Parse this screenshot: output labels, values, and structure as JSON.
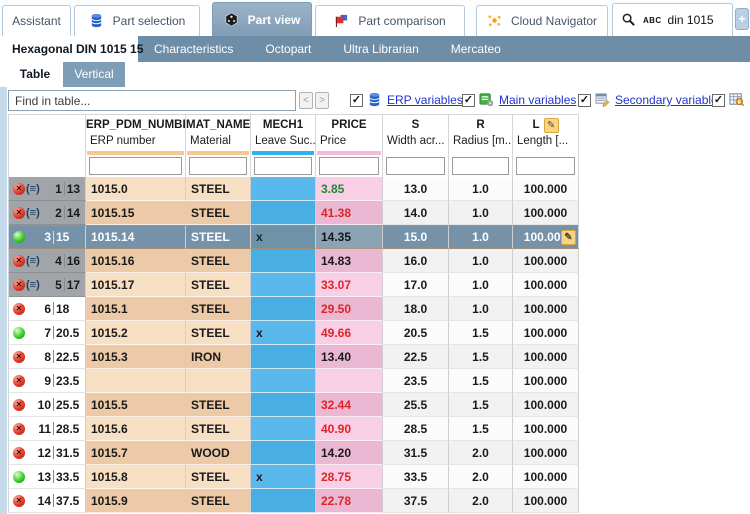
{
  "top_tabs": [
    {
      "label": "Assistant",
      "icon": null,
      "active": false
    },
    {
      "label": "Part selection",
      "icon": "database-icon",
      "active": false
    },
    {
      "label": "Part view",
      "icon": "cube-icon",
      "active": true
    },
    {
      "label": "Part comparison",
      "icon": "flag-icon",
      "active": false
    },
    {
      "label": "Cloud Navigator",
      "icon": "nodes-icon",
      "active": false
    }
  ],
  "search": {
    "abc_label": "ABC",
    "value": "din 1015",
    "icon": "magnifier-icon"
  },
  "new_tab_button": "+",
  "doc_tabs": [
    {
      "label": "Hexagonal DIN 1015 15",
      "active": true
    },
    {
      "label": "Characteristics",
      "active": false
    },
    {
      "label": "Octopart",
      "active": false
    },
    {
      "label": "Ultra Librarian",
      "active": false
    },
    {
      "label": "Mercateo",
      "active": false
    }
  ],
  "view_tabs": [
    {
      "label": "Table",
      "active": true
    },
    {
      "label": "Vertical",
      "active": false
    }
  ],
  "toolbar": {
    "find_placeholder": "Find in table...",
    "prev_label": "<",
    "next_label": ">",
    "toggles": [
      {
        "label": "ERP variables",
        "checked": true,
        "icon": "database-icon"
      },
      {
        "label": "Main variables",
        "checked": true,
        "icon": "main-variables-icon"
      },
      {
        "label": "Secondary variables",
        "checked": true,
        "icon": "secondary-variables-icon"
      },
      {
        "label": "",
        "checked": true,
        "icon": "table-preview-icon"
      }
    ]
  },
  "icons": {
    "eq": "(≡)",
    "pencil": "✎",
    "ball_x": "✕",
    "check": "✓"
  },
  "colors": {
    "link_blue": "#2233cc",
    "left_strip": "#c5dbec",
    "tan_light": "#f7dfc4",
    "tan_dark": "#eccaa7",
    "mech_blue_light": "#5ab9ec",
    "mech_blue_dark": "#49aee4",
    "price_pink_light": "#f8cfe6",
    "price_pink_dark": "#eab8d3",
    "selected_row": "#7592a8",
    "gray_row_header": "#a1a4a8",
    "price_red": "#e02424",
    "price_green": "#1e8a30",
    "header_bar_orange": "#f6c894",
    "header_bar_blue": "#2fb3ea",
    "header_bar_pink": "#f8bada"
  },
  "table": {
    "columns": [
      {
        "name": "ERP_PDM_NUMBER",
        "desc": "ERP number",
        "bar_color": "#f6c894",
        "header_pencil": false
      },
      {
        "name": "MAT_NAME",
        "desc": "Material",
        "bar_color": "#f6c894",
        "header_pencil": false
      },
      {
        "name": "MECH1",
        "desc": "Leave Suc...",
        "bar_color": "#2fb3ea",
        "header_pencil": false
      },
      {
        "name": "PRICE",
        "desc": "Price",
        "bar_color": "#f8bada",
        "header_pencil": false
      },
      {
        "name": "S",
        "desc": "Width acr...",
        "bar_color": "",
        "header_pencil": false
      },
      {
        "name": "R",
        "desc": "Radius [m...",
        "bar_color": "",
        "header_pencil": false
      },
      {
        "name": "L",
        "desc": "Length [...",
        "bar_color": "",
        "header_pencil": true
      }
    ],
    "rows": [
      {
        "n": 1,
        "key": "13",
        "status": "unavailable",
        "eq": true,
        "gray_header": true,
        "selected": false,
        "erp": "1015.0",
        "material": "STEEL",
        "mech1": "",
        "price": "3.85",
        "price_color": "green",
        "s": "13.0",
        "r": "1.0",
        "l": "100.000",
        "pencil": false
      },
      {
        "n": 2,
        "key": "14",
        "status": "unavailable",
        "eq": true,
        "gray_header": true,
        "selected": false,
        "erp": "1015.15",
        "material": "STEEL",
        "mech1": "",
        "price": "41.38",
        "price_color": "red",
        "s": "14.0",
        "r": "1.0",
        "l": "100.000",
        "pencil": false
      },
      {
        "n": 3,
        "key": "15",
        "status": "available",
        "eq": false,
        "gray_header": false,
        "selected": true,
        "erp": "1015.14",
        "material": "STEEL",
        "mech1": "x",
        "price": "14.35",
        "price_color": "black",
        "s": "15.0",
        "r": "1.0",
        "l": "100.000",
        "pencil": true
      },
      {
        "n": 4,
        "key": "16",
        "status": "unavailable",
        "eq": true,
        "gray_header": true,
        "selected": false,
        "erp": "1015.16",
        "material": "STEEL",
        "mech1": "",
        "price": "14.83",
        "price_color": "black",
        "s": "16.0",
        "r": "1.0",
        "l": "100.000",
        "pencil": false
      },
      {
        "n": 5,
        "key": "17",
        "status": "unavailable",
        "eq": true,
        "gray_header": true,
        "selected": false,
        "erp": "1015.17",
        "material": "STEEL",
        "mech1": "",
        "price": "33.07",
        "price_color": "red",
        "s": "17.0",
        "r": "1.0",
        "l": "100.000",
        "pencil": false
      },
      {
        "n": 6,
        "key": "18",
        "status": "unavailable",
        "eq": false,
        "gray_header": false,
        "selected": false,
        "erp": "1015.1",
        "material": "STEEL",
        "mech1": "",
        "price": "29.50",
        "price_color": "red",
        "s": "18.0",
        "r": "1.0",
        "l": "100.000",
        "pencil": false
      },
      {
        "n": 7,
        "key": "20.5",
        "status": "available",
        "eq": false,
        "gray_header": false,
        "selected": false,
        "erp": "1015.2",
        "material": "STEEL",
        "mech1": "x",
        "price": "49.66",
        "price_color": "red",
        "s": "20.5",
        "r": "1.5",
        "l": "100.000",
        "pencil": false
      },
      {
        "n": 8,
        "key": "22.5",
        "status": "unavailable",
        "eq": false,
        "gray_header": false,
        "selected": false,
        "erp": "1015.3",
        "material": "IRON",
        "mech1": "",
        "price": "13.40",
        "price_color": "black",
        "s": "22.5",
        "r": "1.5",
        "l": "100.000",
        "pencil": false
      },
      {
        "n": 9,
        "key": "23.5",
        "status": "unavailable",
        "eq": false,
        "gray_header": false,
        "selected": false,
        "erp": "",
        "material": "",
        "mech1": "",
        "price": "",
        "price_color": "black",
        "s": "23.5",
        "r": "1.5",
        "l": "100.000",
        "pencil": false
      },
      {
        "n": 10,
        "key": "25.5",
        "status": "unavailable",
        "eq": false,
        "gray_header": false,
        "selected": false,
        "erp": "1015.5",
        "material": "STEEL",
        "mech1": "",
        "price": "32.44",
        "price_color": "red",
        "s": "25.5",
        "r": "1.5",
        "l": "100.000",
        "pencil": false
      },
      {
        "n": 11,
        "key": "28.5",
        "status": "unavailable",
        "eq": false,
        "gray_header": false,
        "selected": false,
        "erp": "1015.6",
        "material": "STEEL",
        "mech1": "",
        "price": "40.90",
        "price_color": "red",
        "s": "28.5",
        "r": "1.5",
        "l": "100.000",
        "pencil": false
      },
      {
        "n": 12,
        "key": "31.5",
        "status": "unavailable",
        "eq": false,
        "gray_header": false,
        "selected": false,
        "erp": "1015.7",
        "material": "WOOD",
        "mech1": "",
        "price": "14.20",
        "price_color": "black",
        "s": "31.5",
        "r": "2.0",
        "l": "100.000",
        "pencil": false
      },
      {
        "n": 13,
        "key": "33.5",
        "status": "available",
        "eq": false,
        "gray_header": false,
        "selected": false,
        "erp": "1015.8",
        "material": "STEEL",
        "mech1": "x",
        "price": "28.75",
        "price_color": "red",
        "s": "33.5",
        "r": "2.0",
        "l": "100.000",
        "pencil": false
      },
      {
        "n": 14,
        "key": "37.5",
        "status": "unavailable",
        "eq": false,
        "gray_header": false,
        "selected": false,
        "erp": "1015.9",
        "material": "STEEL",
        "mech1": "",
        "price": "22.78",
        "price_color": "red",
        "s": "37.5",
        "r": "2.0",
        "l": "100.000",
        "pencil": false
      }
    ]
  }
}
